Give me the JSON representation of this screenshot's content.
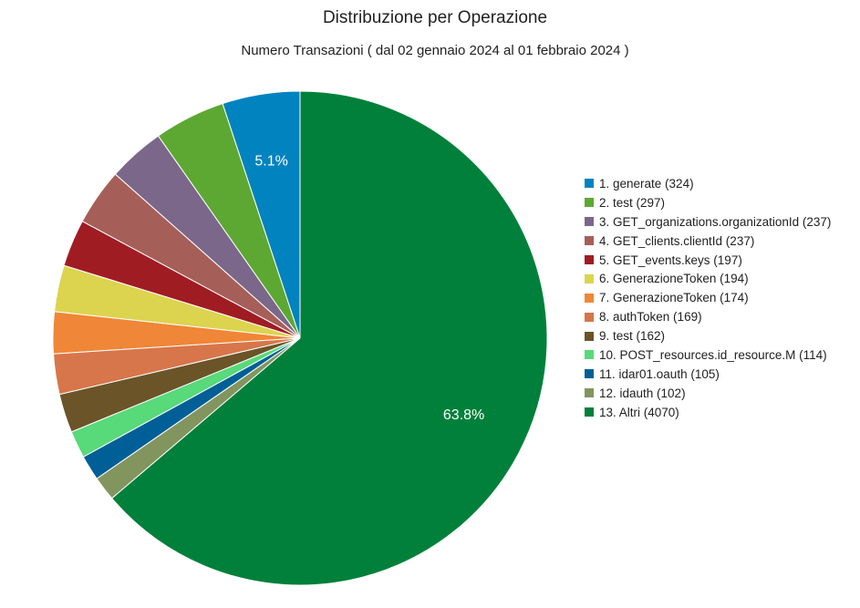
{
  "chart_data": {
    "type": "pie",
    "title": "Distribuzione per Operazione",
    "subtitle": "Numero Transazioni ( dal 02 gennaio 2024 al 01 febbraio 2024 )",
    "legend_position": "right",
    "slices": [
      {
        "label": "1. generate (324)",
        "name": "generate",
        "value": 324,
        "color": "#0083bf",
        "pct_label": "5.1%"
      },
      {
        "label": "2. test (297)",
        "name": "test",
        "value": 297,
        "color": "#5da832",
        "pct_label": ""
      },
      {
        "label": "3. GET_organizations.organizationId (237)",
        "name": "GET_organizations.organizationId",
        "value": 237,
        "color": "#7b6789",
        "pct_label": ""
      },
      {
        "label": "4. GET_clients.clientId (237)",
        "name": "GET_clients.clientId",
        "value": 237,
        "color": "#a65f58",
        "pct_label": ""
      },
      {
        "label": "5. GET_events.keys (197)",
        "name": "GET_events.keys",
        "value": 197,
        "color": "#a01c23",
        "pct_label": ""
      },
      {
        "label": "6. GenerazioneToken (194)",
        "name": "GenerazioneToken",
        "value": 194,
        "color": "#dcd44f",
        "pct_label": ""
      },
      {
        "label": "7. GenerazioneToken (174)",
        "name": "GenerazioneToken",
        "value": 174,
        "color": "#f08637",
        "pct_label": ""
      },
      {
        "label": "8. authToken (169)",
        "name": "authToken",
        "value": 169,
        "color": "#d7764a",
        "pct_label": ""
      },
      {
        "label": "9. test (162)",
        "name": "test",
        "value": 162,
        "color": "#6b5427",
        "pct_label": ""
      },
      {
        "label": "10. POST_resources.id_resource.M (114)",
        "name": "POST_resources.id_resource.M",
        "value": 114,
        "color": "#58d97a",
        "pct_label": ""
      },
      {
        "label": "11. idar01.oauth (105)",
        "name": "idar01.oauth",
        "value": 105,
        "color": "#005f96",
        "pct_label": ""
      },
      {
        "label": "12. idauth (102)",
        "name": "idauth",
        "value": 102,
        "color": "#82955f",
        "pct_label": ""
      },
      {
        "label": "13. Altri (4070)",
        "name": "Altri",
        "value": 4070,
        "color": "#00803a",
        "pct_label": "63.8%"
      }
    ]
  }
}
